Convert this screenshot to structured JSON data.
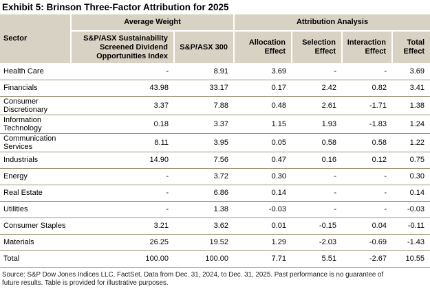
{
  "title": "Exhibit 5: Brinson Three-Factor Attribution for 2025",
  "table": {
    "group_headers": {
      "average_weight": "Average Weight",
      "attribution_analysis": "Attribution Analysis"
    },
    "column_headers": {
      "sector": "Sector",
      "sustainability_index": "S&P/ASX Sustainability Screened Dividend Opportunities Index",
      "spasx_300": "S&P/ASX 300",
      "allocation_effect": "Allocation Effect",
      "selection_effect": "Selection Effect",
      "interaction_effect": "Interaction Effect",
      "total_effect": "Total Effect"
    },
    "rows": [
      {
        "sector": "Health Care",
        "values": [
          "-",
          "8.91",
          "3.69",
          "-",
          "-",
          "3.69"
        ]
      },
      {
        "sector": "Financials",
        "values": [
          "43.98",
          "33.17",
          "0.17",
          "2.42",
          "0.82",
          "3.41"
        ]
      },
      {
        "sector": "Consumer Discretionary",
        "values": [
          "3.37",
          "7.88",
          "0.48",
          "2.61",
          "-1.71",
          "1.38"
        ]
      },
      {
        "sector": "Information Technology",
        "values": [
          "0.18",
          "3.37",
          "1.15",
          "1.93",
          "-1.83",
          "1.24"
        ]
      },
      {
        "sector": "Communication Services",
        "values": [
          "8.11",
          "3.95",
          "0.05",
          "0.58",
          "0.58",
          "1.22"
        ]
      },
      {
        "sector": "Industrials",
        "values": [
          "14.90",
          "7.56",
          "0.47",
          "0.16",
          "0.12",
          "0.75"
        ]
      },
      {
        "sector": "Energy",
        "values": [
          "-",
          "3.72",
          "0.30",
          "-",
          "-",
          "0.30"
        ]
      },
      {
        "sector": "Real Estate",
        "values": [
          "-",
          "6.86",
          "0.14",
          "-",
          "-",
          "0.14"
        ]
      },
      {
        "sector": "Utilities",
        "values": [
          "-",
          "1.38",
          "-0.03",
          "-",
          "-",
          "-0.03"
        ]
      },
      {
        "sector": "Consumer Staples",
        "values": [
          "3.21",
          "3.62",
          "0.01",
          "-0.15",
          "0.04",
          "-0.11"
        ]
      },
      {
        "sector": "Materials",
        "values": [
          "26.25",
          "19.52",
          "1.29",
          "-2.03",
          "-0.69",
          "-1.43"
        ]
      },
      {
        "sector": "Total",
        "values": [
          "100.00",
          "100.00",
          "7.71",
          "5.51",
          "-2.67",
          "10.55"
        ]
      }
    ]
  },
  "footer": {
    "lines": [
      "Source: S&P Dow Jones Indices LLC, FactSet. Data from Dec. 31, 2024, to Dec. 31, 2025.  Past performance is no guarantee of",
      "future results. Table is provided for illustrative purposes."
    ]
  },
  "colors": {
    "header_background": "#d8d2c4",
    "row_line": "#9d8f75",
    "footer_text": "#1a1a1a"
  }
}
